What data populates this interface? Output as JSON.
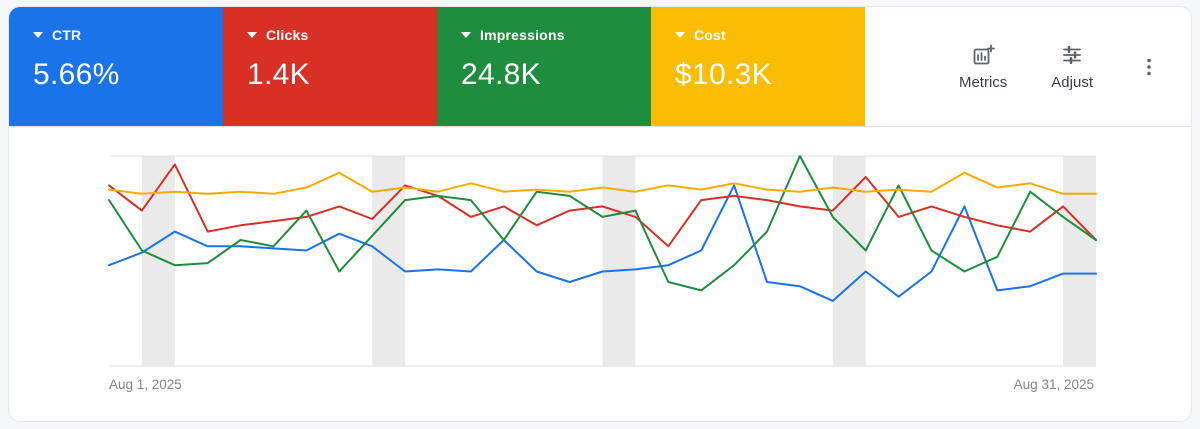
{
  "cards": [
    {
      "label": "CTR",
      "value": "5.66%",
      "color": "#1a73e8"
    },
    {
      "label": "Clicks",
      "value": "1.4K",
      "color": "#d93025"
    },
    {
      "label": "Impressions",
      "value": "24.8K",
      "color": "#1e8e3e"
    },
    {
      "label": "Cost",
      "value": "$10.3K",
      "color": "#fbbc04"
    }
  ],
  "toolbar": {
    "metrics_label": "Metrics",
    "adjust_label": "Adjust"
  },
  "chart_data": {
    "type": "line",
    "x_start_label": "Aug 1, 2025",
    "x_end_label": "Aug 31, 2025",
    "x_days": 31,
    "ylim": [
      0,
      100
    ],
    "grid": "top and bottom boundary lines only",
    "legend_position": "none (colors match metric cards)",
    "weekend_band_day_pairs": [
      [
        2,
        3
      ],
      [
        9,
        10
      ],
      [
        16,
        17
      ],
      [
        23,
        24
      ],
      [
        30,
        31
      ]
    ],
    "band_color": "#eaeaea",
    "gridline_color": "#e0e0e0",
    "series": [
      {
        "name": "CTR",
        "color": "#1a73e8",
        "values": [
          48,
          54,
          64,
          57,
          57,
          56,
          55,
          63,
          57,
          45,
          46,
          45,
          60,
          45,
          40,
          45,
          46,
          48,
          55,
          86,
          40,
          38,
          31,
          45,
          33,
          45,
          76,
          36,
          38,
          44,
          44
        ]
      },
      {
        "name": "Clicks",
        "color": "#d93025",
        "values": [
          86,
          74,
          96,
          64,
          67,
          69,
          71,
          76,
          70,
          86,
          81,
          71,
          76,
          67,
          74,
          76,
          71,
          57,
          79,
          81,
          79,
          76,
          74,
          90,
          71,
          76,
          71,
          67,
          64,
          76,
          60
        ]
      },
      {
        "name": "Impressions",
        "color": "#1e8e3e",
        "values": [
          79,
          55,
          48,
          49,
          60,
          57,
          74,
          45,
          62,
          79,
          81,
          79,
          60,
          83,
          81,
          71,
          74,
          40,
          36,
          48,
          64,
          100,
          71,
          55,
          86,
          55,
          45,
          52,
          83,
          71,
          60
        ]
      },
      {
        "name": "Cost",
        "color": "#f9ab00",
        "values": [
          84,
          82,
          83,
          82,
          83,
          82,
          85,
          92,
          83,
          85,
          83,
          87,
          83,
          84,
          83,
          85,
          83,
          86,
          84,
          87,
          84,
          83,
          85,
          83,
          84,
          83,
          92,
          85,
          87,
          82,
          82
        ]
      }
    ]
  }
}
